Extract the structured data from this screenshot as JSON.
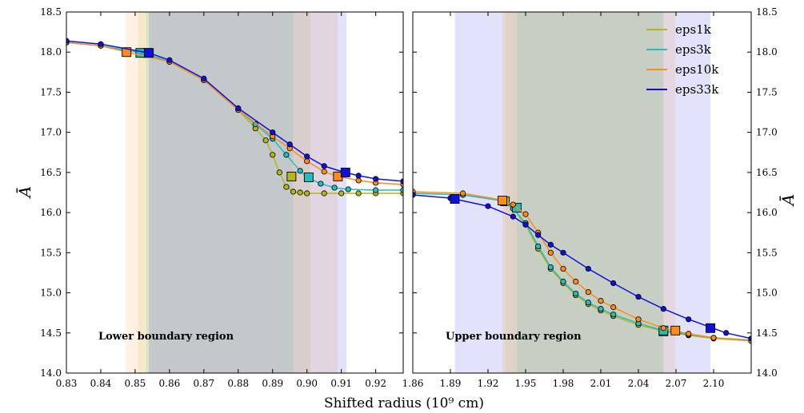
{
  "chart_data": {
    "type": "line",
    "xlabel": "Shifted radius (10⁹ cm)",
    "ylabel": "Ā",
    "ylim": [
      14.0,
      18.5
    ],
    "yticks": [
      "14.0",
      "14.5",
      "15.0",
      "15.5",
      "16.0",
      "16.5",
      "17.0",
      "17.5",
      "18.0",
      "18.5"
    ],
    "legend": {
      "placement": "top-right of right panel",
      "entries": [
        {
          "name": "eps1k",
          "color": "#b5b51c"
        },
        {
          "name": "eps3k",
          "color": "#22bdbd"
        },
        {
          "name": "eps10k",
          "color": "#ff8c1a"
        },
        {
          "name": "eps33k",
          "color": "#1010dd"
        }
      ]
    },
    "panels": [
      {
        "annotation": "Lower boundary region",
        "xlim": [
          0.83,
          0.928
        ],
        "xticks": [
          "0.83",
          "0.84",
          "0.85",
          "0.86",
          "0.87",
          "0.88",
          "0.89",
          "0.90",
          "0.91",
          "0.92"
        ],
        "bands": [
          {
            "x0": 0.8472,
            "x1": 0.909,
            "color": "#ff8c1a"
          },
          {
            "x0": 0.8508,
            "x1": 0.901,
            "color": "#b5b51c"
          },
          {
            "x0": 0.8532,
            "x1": 0.896,
            "color": "#22bdbd"
          },
          {
            "x0": 0.854,
            "x1": 0.9115,
            "color": "#1010dd"
          }
        ],
        "series": [
          {
            "name": "eps1k",
            "x": [
              0.83,
              0.84,
              0.853,
              0.86,
              0.87,
              0.88,
              0.885,
              0.888,
              0.89,
              0.892,
              0.894,
              0.896,
              0.898,
              0.9,
              0.905,
              0.91,
              0.915,
              0.92,
              0.928
            ],
            "y": [
              18.12,
              18.08,
              17.98,
              17.88,
              17.65,
              17.28,
              17.05,
              16.9,
              16.72,
              16.5,
              16.32,
              16.26,
              16.25,
              16.24,
              16.24,
              16.24,
              16.24,
              16.24,
              16.24
            ],
            "markers": [
              {
                "x": 0.8535,
                "y": 17.99
              },
              {
                "x": 0.8955,
                "y": 16.45
              }
            ]
          },
          {
            "name": "eps3k",
            "x": [
              0.83,
              0.84,
              0.853,
              0.86,
              0.87,
              0.88,
              0.885,
              0.89,
              0.894,
              0.898,
              0.9,
              0.904,
              0.908,
              0.912,
              0.92,
              0.928
            ],
            "y": [
              18.12,
              18.08,
              17.98,
              17.88,
              17.65,
              17.28,
              17.1,
              16.92,
              16.72,
              16.52,
              16.44,
              16.36,
              16.31,
              16.29,
              16.28,
              16.28
            ],
            "markers": [
              {
                "x": 0.8515,
                "y": 17.99
              },
              {
                "x": 0.9005,
                "y": 16.44
              }
            ]
          },
          {
            "name": "eps10k",
            "x": [
              0.83,
              0.84,
              0.8475,
              0.86,
              0.87,
              0.88,
              0.89,
              0.895,
              0.9,
              0.905,
              0.909,
              0.915,
              0.92,
              0.928
            ],
            "y": [
              18.12,
              18.08,
              18.0,
              17.88,
              17.65,
              17.28,
              16.95,
              16.8,
              16.64,
              16.51,
              16.45,
              16.4,
              16.37,
              16.35
            ],
            "markers": [
              {
                "x": 0.8475,
                "y": 18.0
              },
              {
                "x": 0.909,
                "y": 16.45
              }
            ]
          },
          {
            "name": "eps33k",
            "x": [
              0.83,
              0.84,
              0.854,
              0.86,
              0.87,
              0.88,
              0.89,
              0.895,
              0.9,
              0.905,
              0.911,
              0.915,
              0.92,
              0.928
            ],
            "y": [
              18.14,
              18.1,
              17.99,
              17.9,
              17.67,
              17.3,
              17.0,
              16.85,
              16.7,
              16.58,
              16.5,
              16.46,
              16.42,
              16.39
            ],
            "markers": [
              {
                "x": 0.854,
                "y": 17.99
              },
              {
                "x": 0.9112,
                "y": 16.5
              }
            ]
          }
        ]
      },
      {
        "annotation": "Upper boundary region",
        "xlim": [
          1.86,
          2.13
        ],
        "xticks": [
          "1.86",
          "1.89",
          "1.92",
          "1.95",
          "1.98",
          "2.01",
          "2.04",
          "2.07",
          "2.10"
        ],
        "bands": [
          {
            "x0": 1.8935,
            "x1": 2.0975,
            "color": "#1010dd"
          },
          {
            "x0": 1.9315,
            "x1": 2.0695,
            "color": "#ff8c1a"
          },
          {
            "x0": 1.9335,
            "x1": 2.06,
            "color": "#b5b51c"
          },
          {
            "x0": 1.943,
            "x1": 2.06,
            "color": "#22bdbd"
          }
        ],
        "series": [
          {
            "name": "eps1k",
            "x": [
              1.86,
              1.9,
              1.93,
              1.94,
              1.95,
              1.96,
              1.97,
              1.98,
              1.99,
              2.0,
              2.01,
              2.02,
              2.04,
              2.06,
              2.08,
              2.1,
              2.13
            ],
            "y": [
              16.24,
              16.22,
              16.15,
              16.05,
              15.85,
              15.55,
              15.3,
              15.12,
              14.97,
              14.86,
              14.78,
              14.71,
              14.6,
              14.52,
              14.47,
              14.43,
              14.4
            ],
            "markers": [
              {
                "x": 1.9335,
                "y": 16.14
              },
              {
                "x": 2.06,
                "y": 14.52
              }
            ]
          },
          {
            "name": "eps3k",
            "x": [
              1.86,
              1.9,
              1.93,
              1.94,
              1.95,
              1.96,
              1.97,
              1.98,
              1.99,
              2.0,
              2.01,
              2.02,
              2.04,
              2.06,
              2.08,
              2.1,
              2.13
            ],
            "y": [
              16.24,
              16.22,
              16.15,
              16.05,
              15.87,
              15.58,
              15.32,
              15.14,
              14.99,
              14.88,
              14.8,
              14.73,
              14.62,
              14.53,
              14.48,
              14.44,
              14.41
            ],
            "markers": [
              {
                "x": 1.943,
                "y": 16.06
              },
              {
                "x": 2.06,
                "y": 14.53
              }
            ]
          },
          {
            "name": "eps10k",
            "x": [
              1.86,
              1.9,
              1.93,
              1.94,
              1.95,
              1.96,
              1.97,
              1.98,
              1.99,
              2.0,
              2.01,
              2.02,
              2.04,
              2.06,
              2.08,
              2.1,
              2.13
            ],
            "y": [
              16.26,
              16.24,
              16.16,
              16.1,
              15.98,
              15.75,
              15.5,
              15.3,
              15.14,
              15.01,
              14.9,
              14.82,
              14.67,
              14.56,
              14.49,
              14.44,
              14.4
            ],
            "markers": [
              {
                "x": 1.9315,
                "y": 16.15
              },
              {
                "x": 2.0695,
                "y": 14.53
              }
            ]
          },
          {
            "name": "eps33k",
            "x": [
              1.86,
              1.89,
              1.92,
              1.94,
              1.95,
              1.96,
              1.97,
              1.98,
              2.0,
              2.02,
              2.04,
              2.06,
              2.08,
              2.0975,
              2.11,
              2.13
            ],
            "y": [
              16.22,
              16.18,
              16.08,
              15.95,
              15.85,
              15.72,
              15.6,
              15.5,
              15.3,
              15.12,
              14.95,
              14.8,
              14.67,
              14.57,
              14.5,
              14.43
            ],
            "markers": [
              {
                "x": 1.8935,
                "y": 16.17
              },
              {
                "x": 2.0975,
                "y": 14.56
              }
            ]
          }
        ]
      }
    ]
  }
}
